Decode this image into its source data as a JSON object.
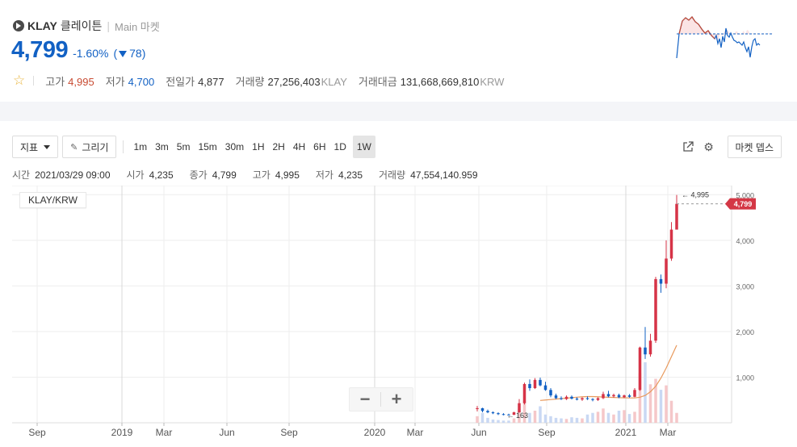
{
  "header": {
    "symbol": "KLAY",
    "name_kr": "클레이튼",
    "market": "Main 마켓",
    "price": "4,799",
    "change_rate": "-1.60%",
    "change_amount": "78",
    "stats": {
      "high_label": "고가",
      "high": "4,995",
      "low_label": "저가",
      "low": "4,700",
      "prev_label": "전일가",
      "prev": "4,877",
      "volume_label": "거래량",
      "volume": "27,256,403",
      "volume_unit": "KLAY",
      "amount_label": "거래대금",
      "amount": "131,668,669,810",
      "amount_unit": "KRW"
    }
  },
  "toolbar": {
    "indicator_label": "지표",
    "draw_label": "그리기",
    "intervals": [
      "1m",
      "3m",
      "5m",
      "15m",
      "30m",
      "1H",
      "2H",
      "4H",
      "6H",
      "1D",
      "1W"
    ],
    "active_interval": "1W",
    "depth_label": "마켓 뎁스"
  },
  "ohlc": {
    "time_label": "시간",
    "time": "2021/03/29 09:00",
    "open_label": "시가",
    "open": "4,235",
    "close_label": "종가",
    "close": "4,799",
    "high_label": "고가",
    "high": "4,995",
    "low_label": "저가",
    "low": "4,235",
    "volume_label": "거래량",
    "volume": "47,554,140.959"
  },
  "pair_label": "KLAY/KRW",
  "colors": {
    "up": "#c84a31",
    "down": "#1261c4",
    "ma": "#e8995c",
    "tag": "#d43745"
  },
  "chart_data": {
    "type": "candlestick",
    "interval": "1W",
    "y_ticks": [
      "1,000",
      "2,000",
      "3,000",
      "4,000",
      "5,000"
    ],
    "y_tick_values": [
      1000,
      2000,
      3000,
      4000,
      5000
    ],
    "ylim": [
      0,
      5200
    ],
    "x_ticks": [
      "Sep",
      "2019",
      "Mar",
      "Jun",
      "Sep",
      "2020",
      "Mar",
      "Jun",
      "Sep",
      "2021",
      "Mar"
    ],
    "last_price_tag": "4,799",
    "max_marker": "← 4,995",
    "min_marker": "← 163",
    "candles": [
      {
        "o": 300,
        "h": 370,
        "l": 250,
        "c": 320
      },
      {
        "o": 320,
        "h": 330,
        "l": 230,
        "c": 260
      },
      {
        "o": 260,
        "h": 290,
        "l": 210,
        "c": 230
      },
      {
        "o": 230,
        "h": 250,
        "l": 190,
        "c": 210
      },
      {
        "o": 210,
        "h": 230,
        "l": 170,
        "c": 190
      },
      {
        "o": 190,
        "h": 210,
        "l": 163,
        "c": 180
      },
      {
        "o": 180,
        "h": 200,
        "l": 165,
        "c": 175
      },
      {
        "o": 175,
        "h": 240,
        "l": 170,
        "c": 230
      },
      {
        "o": 230,
        "h": 520,
        "l": 220,
        "c": 430
      },
      {
        "o": 430,
        "h": 880,
        "l": 400,
        "c": 850
      },
      {
        "o": 850,
        "h": 950,
        "l": 700,
        "c": 760
      },
      {
        "o": 760,
        "h": 980,
        "l": 740,
        "c": 940
      },
      {
        "o": 940,
        "h": 990,
        "l": 800,
        "c": 820
      },
      {
        "o": 820,
        "h": 900,
        "l": 700,
        "c": 720
      },
      {
        "o": 720,
        "h": 760,
        "l": 560,
        "c": 600
      },
      {
        "o": 600,
        "h": 640,
        "l": 520,
        "c": 540
      },
      {
        "o": 540,
        "h": 580,
        "l": 500,
        "c": 520
      },
      {
        "o": 520,
        "h": 600,
        "l": 500,
        "c": 570
      },
      {
        "o": 570,
        "h": 600,
        "l": 510,
        "c": 530
      },
      {
        "o": 530,
        "h": 560,
        "l": 490,
        "c": 510
      },
      {
        "o": 510,
        "h": 560,
        "l": 480,
        "c": 540
      },
      {
        "o": 540,
        "h": 580,
        "l": 500,
        "c": 520
      },
      {
        "o": 520,
        "h": 540,
        "l": 470,
        "c": 500
      },
      {
        "o": 500,
        "h": 560,
        "l": 480,
        "c": 540
      },
      {
        "o": 540,
        "h": 680,
        "l": 520,
        "c": 630
      },
      {
        "o": 630,
        "h": 700,
        "l": 560,
        "c": 580
      },
      {
        "o": 580,
        "h": 640,
        "l": 550,
        "c": 610
      },
      {
        "o": 610,
        "h": 640,
        "l": 540,
        "c": 560
      },
      {
        "o": 560,
        "h": 620,
        "l": 540,
        "c": 600
      },
      {
        "o": 600,
        "h": 630,
        "l": 550,
        "c": 570
      },
      {
        "o": 570,
        "h": 760,
        "l": 560,
        "c": 720
      },
      {
        "o": 720,
        "h": 1670,
        "l": 700,
        "c": 1650
      },
      {
        "o": 1650,
        "h": 2100,
        "l": 1400,
        "c": 1500
      },
      {
        "o": 1500,
        "h": 1950,
        "l": 1450,
        "c": 1800
      },
      {
        "o": 1800,
        "h": 3200,
        "l": 1750,
        "c": 3150
      },
      {
        "o": 3150,
        "h": 3250,
        "l": 2850,
        "c": 3050
      },
      {
        "o": 3050,
        "h": 4000,
        "l": 2950,
        "c": 3600
      },
      {
        "o": 3600,
        "h": 4400,
        "l": 3550,
        "c": 4235
      },
      {
        "o": 4235,
        "h": 4995,
        "l": 4235,
        "c": 4799
      }
    ],
    "ma": [
      null,
      null,
      null,
      null,
      null,
      null,
      null,
      null,
      null,
      null,
      null,
      null,
      490,
      500,
      510,
      520,
      530,
      540,
      550,
      560,
      570,
      575,
      575,
      570,
      565,
      560,
      555,
      550,
      548,
      545,
      545,
      560,
      600,
      680,
      800,
      980,
      1200,
      1450,
      1700
    ],
    "volumes": [
      120,
      180,
      90,
      60,
      50,
      40,
      40,
      80,
      250,
      400,
      180,
      220,
      300,
      150,
      120,
      90,
      80,
      70,
      100,
      90,
      80,
      150,
      180,
      200,
      260,
      180,
      150,
      220,
      230,
      160,
      200,
      900,
      1100,
      700,
      800,
      600,
      680,
      400,
      180
    ]
  }
}
